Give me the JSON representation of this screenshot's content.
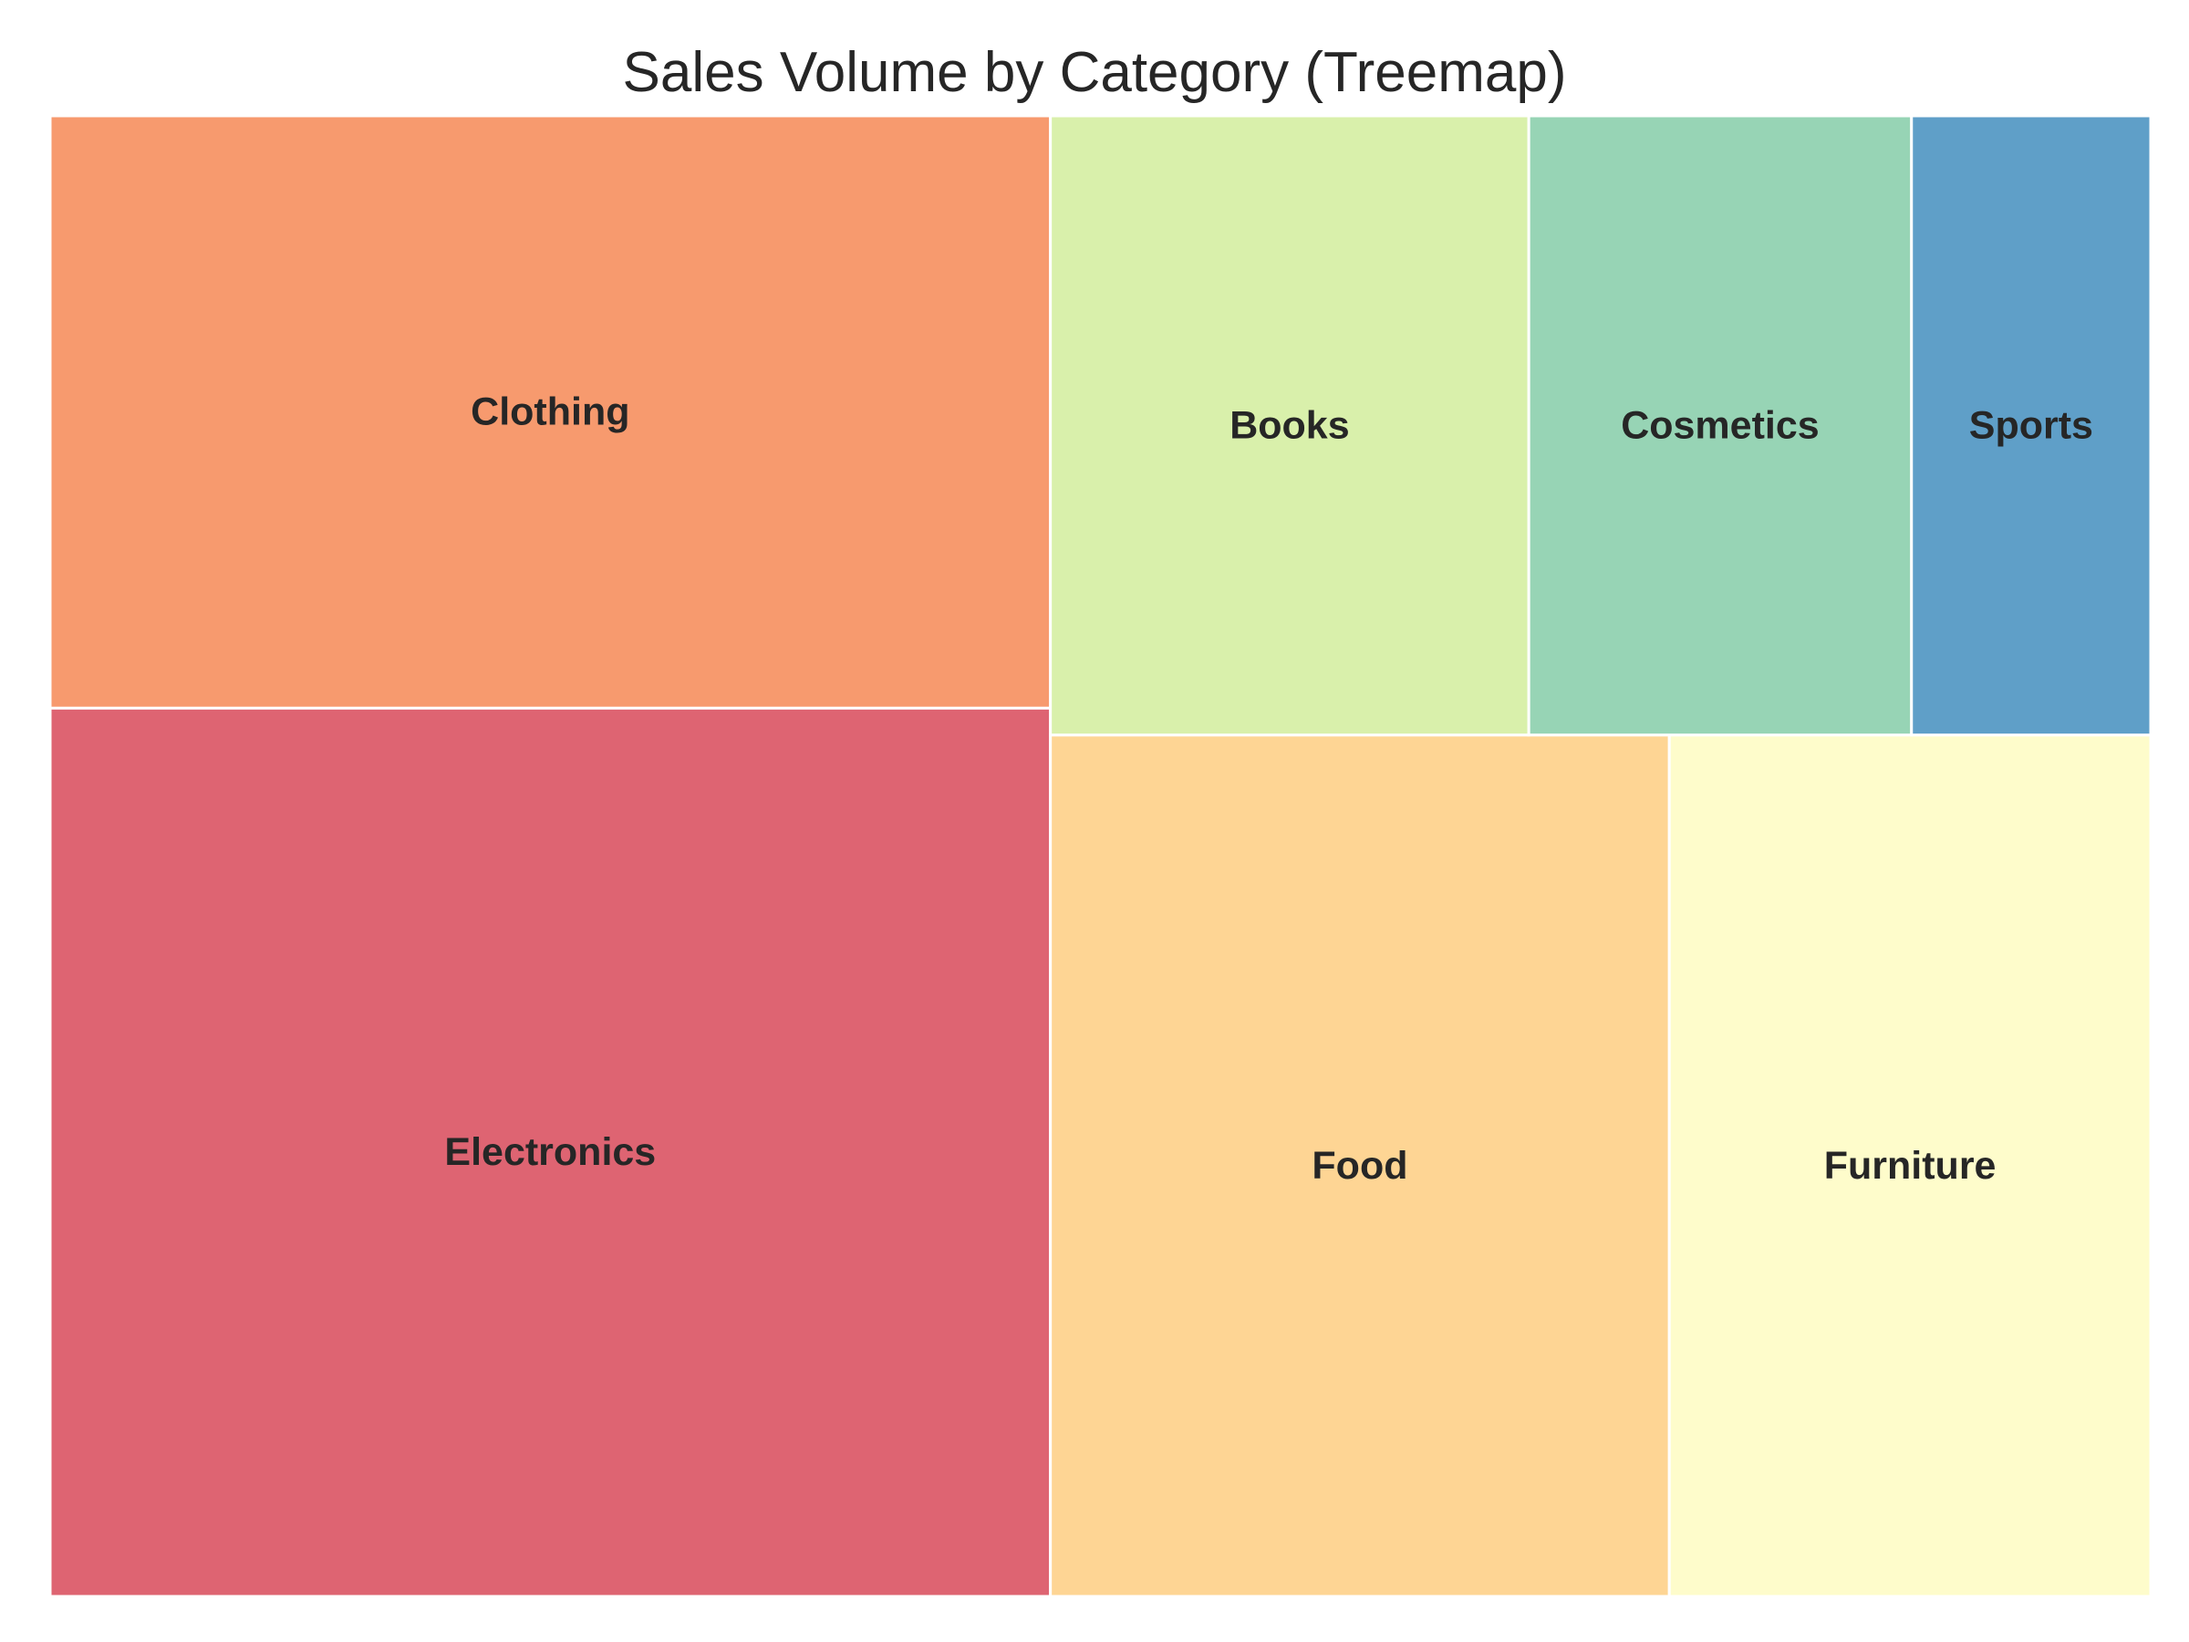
{
  "chart_data": {
    "type": "treemap",
    "title": "Sales Volume by Category (Treemap)",
    "items": [
      {
        "label": "Electronics",
        "value": 30,
        "color": "#DE6472"
      },
      {
        "label": "Clothing",
        "value": 20,
        "color": "#F79A6E"
      },
      {
        "label": "Food",
        "value": 18,
        "color": "#FED594"
      },
      {
        "label": "Furniture",
        "value": 14,
        "color": "#FEFCCB"
      },
      {
        "label": "Books",
        "value": 10,
        "color": "#D9F0AB"
      },
      {
        "label": "Cosmetics",
        "value": 8,
        "color": "#97D4B5"
      },
      {
        "label": "Sports",
        "value": 5,
        "color": "#5F9FC8"
      }
    ],
    "border_color": "#ffffff",
    "grid": false,
    "legend": "none"
  }
}
